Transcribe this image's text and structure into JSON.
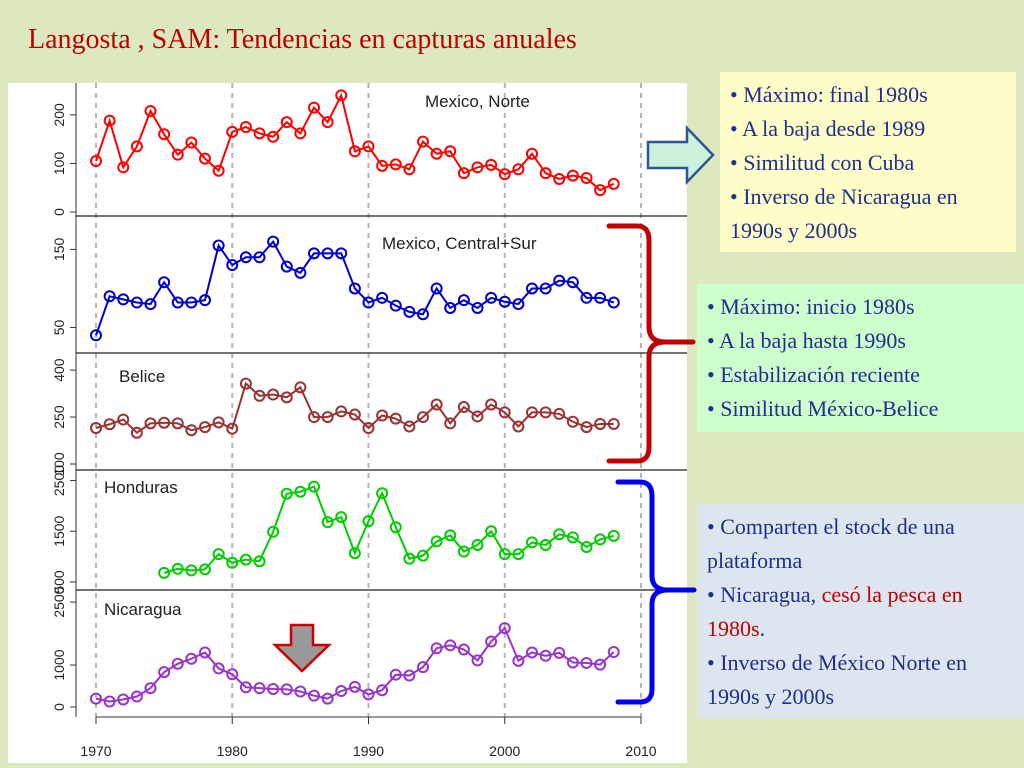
{
  "title": "Langosta , SAM: Tendencias en capturas anuales",
  "colors": {
    "title": "#c00000",
    "mexico_norte": "#ff0000",
    "mexico_central_sur": "#0000cc",
    "belice": "#993333",
    "honduras": "#00cc00",
    "nicaragua": "#9933cc",
    "bracket_red": "#c00000",
    "bracket_blue": "#0000ee",
    "box_yellow": "#fffdc8",
    "box_green": "#ccffcc",
    "box_blue": "#dde6f0"
  },
  "notes": {
    "mexico_norte": {
      "lines": [
        "• Máximo: final 1980s",
        "• A la baja desde 1989",
        "• Similitud con Cuba",
        "• Inverso de Nicaragua en 1990s y 2000s"
      ]
    },
    "mexico_central_belice": {
      "lines": [
        "• Máximo: inicio 1980s",
        "• A la baja hasta 1990s",
        "• Estabilización reciente",
        "• Similitud México-Belice"
      ]
    },
    "honduras_nicaragua": {
      "line1": "• Comparten el stock de una plataforma",
      "line2_start": "• Nicaragua, ",
      "line2_red": "cesó la pesca en 1980s",
      "line2_end": ".",
      "line3": "• Inverso de México Norte en 1990s y 2000s"
    }
  },
  "icons": [
    "right-arrow-icon",
    "down-arrow-icon",
    "red-curly-bracket",
    "blue-curly-bracket"
  ],
  "chart_data": {
    "type": "line",
    "x_ticks": [
      1970,
      1980,
      1990,
      2000,
      2010
    ],
    "xlim": [
      1968,
      2011
    ],
    "grid": "vertical dashed gray at x ticks",
    "panels": [
      {
        "name": "Mexico, Norte",
        "color": "#ff0000",
        "ylim": [
          0,
          245
        ],
        "y_ticks": [
          0,
          100,
          200
        ],
        "x": [
          1970,
          1971,
          1972,
          1973,
          1974,
          1975,
          1976,
          1977,
          1978,
          1979,
          1980,
          1981,
          1982,
          1983,
          1984,
          1985,
          1986,
          1987,
          1988,
          1989,
          1990,
          1991,
          1992,
          1993,
          1994,
          1995,
          1996,
          1997,
          1998,
          1999,
          2000,
          2001,
          2002,
          2003,
          2004,
          2005,
          2006,
          2007,
          2008
        ],
        "values": [
          105,
          188,
          92,
          135,
          208,
          160,
          118,
          143,
          110,
          85,
          165,
          175,
          162,
          155,
          185,
          162,
          215,
          185,
          240,
          125,
          135,
          95,
          98,
          88,
          145,
          120,
          125,
          80,
          92,
          97,
          78,
          88,
          120,
          80,
          68,
          75,
          70,
          45,
          58
        ]
      },
      {
        "name": "Mexico, Central+Sur",
        "color": "#0000cc",
        "ylim": [
          25,
          180
        ],
        "y_ticks": [
          50,
          150
        ],
        "x": [
          1970,
          1971,
          1972,
          1973,
          1974,
          1975,
          1976,
          1977,
          1978,
          1979,
          1980,
          1981,
          1982,
          1983,
          1984,
          1985,
          1986,
          1987,
          1988,
          1989,
          1990,
          1991,
          1992,
          1993,
          1994,
          1995,
          1996,
          1997,
          1998,
          1999,
          2000,
          2001,
          2002,
          2003,
          2004,
          2005,
          2006,
          2007,
          2008
        ],
        "values": [
          40,
          90,
          86,
          82,
          80,
          108,
          82,
          82,
          85,
          155,
          130,
          140,
          140,
          160,
          128,
          120,
          145,
          145,
          145,
          100,
          82,
          88,
          78,
          70,
          67,
          100,
          75,
          85,
          75,
          88,
          83,
          80,
          100,
          100,
          110,
          108,
          88,
          88,
          82
        ]
      },
      {
        "name": "Belice",
        "color": "#993333",
        "ylim": [
          100,
          410
        ],
        "y_ticks": [
          100,
          250,
          400
        ],
        "x": [
          1970,
          1971,
          1972,
          1973,
          1974,
          1975,
          1976,
          1977,
          1978,
          1979,
          1980,
          1981,
          1982,
          1983,
          1984,
          1985,
          1986,
          1987,
          1988,
          1989,
          1990,
          1991,
          1992,
          1993,
          1994,
          1995,
          1996,
          1997,
          1998,
          1999,
          2000,
          2001,
          2002,
          2003,
          2004,
          2005,
          2006,
          2007,
          2008
        ],
        "values": [
          215,
          227,
          242,
          200,
          230,
          232,
          230,
          208,
          218,
          233,
          213,
          357,
          318,
          322,
          313,
          345,
          250,
          250,
          268,
          258,
          215,
          255,
          245,
          220,
          250,
          290,
          230,
          282,
          252,
          290,
          265,
          220,
          265,
          265,
          260,
          235,
          218,
          228,
          228
        ]
      },
      {
        "name": "Honduras",
        "color": "#00cc00",
        "ylim": [
          500,
          2550
        ],
        "y_ticks": [
          500,
          1500,
          2500
        ],
        "x": [
          1975,
          1976,
          1977,
          1978,
          1979,
          1980,
          1981,
          1982,
          1983,
          1984,
          1985,
          1986,
          1987,
          1988,
          1989,
          1990,
          1991,
          1992,
          1993,
          1994,
          1995,
          1996,
          1997,
          1998,
          1999,
          2000,
          2001,
          2002,
          2003,
          2004,
          2005,
          2006,
          2007,
          2008
        ],
        "values": [
          680,
          760,
          730,
          750,
          1050,
          880,
          940,
          910,
          1490,
          2240,
          2280,
          2380,
          1680,
          1780,
          1070,
          1700,
          2250,
          1580,
          960,
          1020,
          1300,
          1420,
          1100,
          1230,
          1500,
          1050,
          1050,
          1280,
          1230,
          1440,
          1380,
          1190,
          1340,
          1410
        ]
      },
      {
        "name": "Nicaragua",
        "color": "#9933cc",
        "ylim": [
          0,
          2550
        ],
        "y_ticks": [
          0,
          1000,
          2500
        ],
        "x": [
          1970,
          1971,
          1972,
          1973,
          1974,
          1975,
          1976,
          1977,
          1978,
          1979,
          1980,
          1981,
          1982,
          1983,
          1984,
          1985,
          1986,
          1987,
          1988,
          1989,
          1990,
          1991,
          1992,
          1993,
          1994,
          1995,
          1996,
          1997,
          1998,
          1999,
          2000,
          2001,
          2002,
          2003,
          2004,
          2005,
          2006,
          2007,
          2008
        ],
        "values": [
          200,
          130,
          180,
          250,
          450,
          830,
          1030,
          1150,
          1300,
          920,
          780,
          470,
          450,
          430,
          420,
          370,
          270,
          200,
          380,
          480,
          300,
          400,
          770,
          750,
          950,
          1400,
          1470,
          1370,
          1110,
          1560,
          1880,
          1100,
          1300,
          1220,
          1290,
          1060,
          1050,
          1010,
          1310
        ]
      }
    ]
  }
}
